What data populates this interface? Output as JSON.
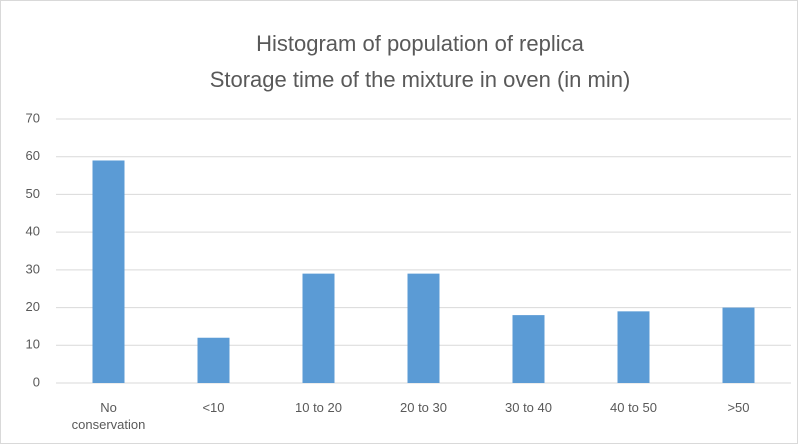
{
  "chart_data": {
    "type": "bar",
    "title": "Histogram of population of replica",
    "subtitle": "Storage time of the mixture in oven (in min)",
    "categories": [
      "No conservation",
      "<10",
      "10 to 20",
      "20 to 30",
      "30 to 40",
      "40 to 50",
      ">50"
    ],
    "values": [
      59,
      12,
      29,
      29,
      18,
      19,
      20
    ],
    "color": "#5b9bd5",
    "ylim": [
      0,
      70
    ],
    "yticks": [
      0,
      10,
      20,
      30,
      40,
      50,
      60,
      70
    ],
    "grid": true
  }
}
